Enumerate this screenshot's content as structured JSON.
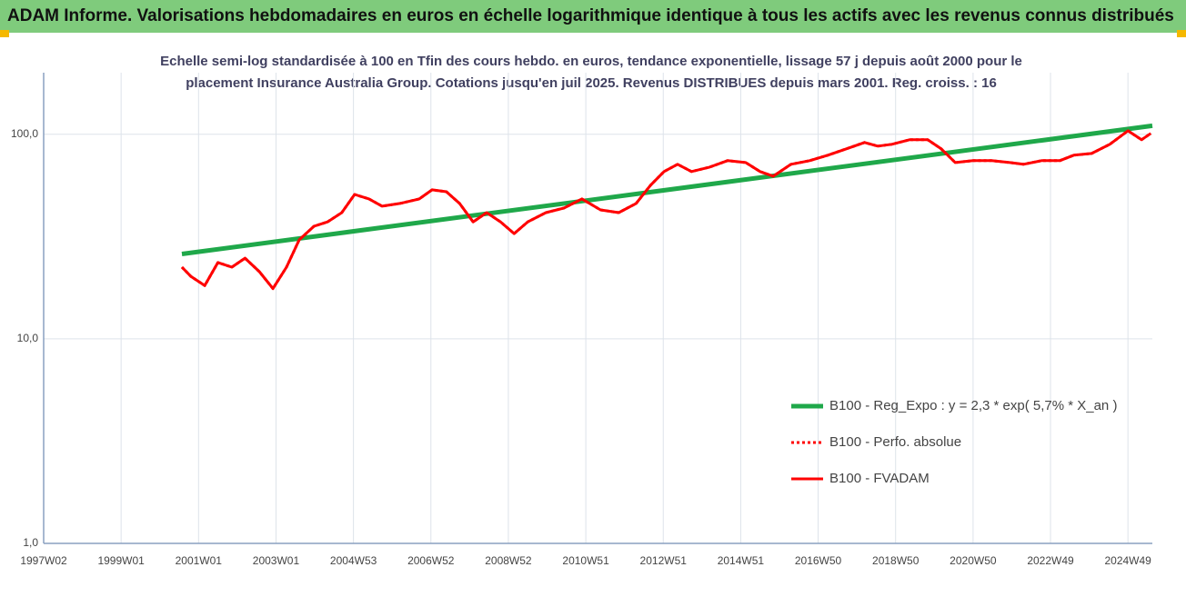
{
  "chart_data": {
    "type": "line",
    "title": "ADAM Informe. Valorisations hebdomadaires en euros en échelle logarithmique identique à tous les actifs avec les revenus connus distribués",
    "subtitle": [
      "Echelle semi-log standardisée à 100 en Tfin des cours hebdo. en euros, tendance exponentielle, lissage 57 j depuis août 2000 pour le",
      "placement Insurance Australia Group. Cotations jusqu'en juil 2025. Revenus DISTRIBUES depuis mars 2001. Reg. croiss. : 16"
    ],
    "log_scale": true,
    "grid": true,
    "legend_position": "lower right",
    "xlim": [
      1997.0,
      2025.63
    ],
    "xticks": [
      {
        "value": 1997.0,
        "label": "1997W02"
      },
      {
        "value": 1999.0,
        "label": "1999W01"
      },
      {
        "value": 2001.0,
        "label": "2001W01"
      },
      {
        "value": 2003.0,
        "label": "2003W01"
      },
      {
        "value": 2005.0,
        "label": "2004W53"
      },
      {
        "value": 2007.0,
        "label": "2006W52"
      },
      {
        "value": 2009.0,
        "label": "2008W52"
      },
      {
        "value": 2011.0,
        "label": "2010W51"
      },
      {
        "value": 2013.0,
        "label": "2012W51"
      },
      {
        "value": 2015.0,
        "label": "2014W51"
      },
      {
        "value": 2017.0,
        "label": "2016W50"
      },
      {
        "value": 2019.0,
        "label": "2018W50"
      },
      {
        "value": 2021.0,
        "label": "2020W50"
      },
      {
        "value": 2023.0,
        "label": "2022W49"
      },
      {
        "value": 2025.0,
        "label": "2024W49"
      }
    ],
    "ylim": [
      1,
      200
    ],
    "yticks": [
      {
        "value": 1,
        "label": "1,0"
      },
      {
        "value": 10,
        "label": "10,0"
      },
      {
        "value": 100,
        "label": "100,0"
      }
    ],
    "series": [
      {
        "name": "B100 - Reg_Expo : y = 2,3 * exp( 5,7% *  X_an )",
        "color": "#1fa84a",
        "style": "solid",
        "width": 5,
        "x": [
          2000.57,
          2025.63
        ],
        "values": [
          26,
          110
        ]
      },
      {
        "name": "B100 - Perfo. absolue",
        "color": "#ff0000",
        "style": "dotted",
        "width": 3,
        "x": [
          2000.57,
          2000.8,
          2001.16,
          2001.5,
          2001.86,
          2002.2,
          2002.57,
          2002.92,
          2003.27,
          2003.6,
          2003.98,
          2004.33,
          2004.7,
          2005.03,
          2005.4,
          2005.74,
          2006.2,
          2006.7,
          2007.03,
          2007.4,
          2007.74,
          2008.09,
          2008.44,
          2008.8,
          2009.15,
          2009.5,
          2009.97,
          2010.44,
          2010.9,
          2011.38,
          2011.85,
          2012.3,
          2012.67,
          2013.02,
          2013.37,
          2013.73,
          2014.2,
          2014.66,
          2015.13,
          2015.5,
          2015.84,
          2016.3,
          2016.78,
          2017.25,
          2017.72,
          2018.2,
          2018.54,
          2018.9,
          2019.36,
          2019.83,
          2020.18,
          2020.54,
          2021.0,
          2021.48,
          2021.95,
          2022.3,
          2022.77,
          2023.24,
          2023.6,
          2024.06,
          2024.53,
          2025.0,
          2025.35,
          2025.59
        ],
        "values": [
          22.4,
          20.2,
          18.2,
          23.6,
          22.4,
          24.8,
          21.3,
          17.6,
          22.4,
          30.5,
          35.5,
          37.3,
          41.4,
          50.8,
          48.3,
          44.5,
          45.9,
          48.3,
          53.5,
          52.4,
          45.9,
          37.3,
          41.4,
          37.3,
          32.7,
          37.3,
          41.4,
          43.6,
          48.3,
          42.7,
          41.4,
          45.9,
          56.3,
          65.7,
          71.3,
          65.7,
          69.1,
          74.3,
          72.7,
          65.7,
          62.4,
          71.3,
          74.3,
          79.0,
          84.8,
          91.2,
          87.5,
          89.3,
          94.0,
          94.0,
          84.8,
          72.7,
          74.3,
          74.3,
          72.7,
          71.3,
          74.3,
          74.3,
          79.0,
          80.6,
          89.3,
          104,
          94,
          101
        ]
      },
      {
        "name": "B100 - FVADAM",
        "color": "#ff0000",
        "style": "solid",
        "width": 3,
        "x": [
          2000.57,
          2000.8,
          2001.16,
          2001.5,
          2001.86,
          2002.2,
          2002.57,
          2002.92,
          2003.27,
          2003.6,
          2003.98,
          2004.33,
          2004.7,
          2005.03,
          2005.4,
          2005.74,
          2006.2,
          2006.7,
          2007.03,
          2007.4,
          2007.74,
          2008.09,
          2008.44,
          2008.8,
          2009.15,
          2009.5,
          2009.97,
          2010.44,
          2010.9,
          2011.38,
          2011.85,
          2012.3,
          2012.67,
          2013.02,
          2013.37,
          2013.73,
          2014.2,
          2014.66,
          2015.13,
          2015.5,
          2015.84,
          2016.3,
          2016.78,
          2017.25,
          2017.72,
          2018.2,
          2018.54,
          2018.9,
          2019.36,
          2019.83,
          2020.18,
          2020.54,
          2021.0,
          2021.48,
          2021.95,
          2022.3,
          2022.77,
          2023.24,
          2023.6,
          2024.06,
          2024.53,
          2025.0,
          2025.35,
          2025.59
        ],
        "values": [
          22.4,
          20.2,
          18.2,
          23.6,
          22.4,
          24.8,
          21.3,
          17.6,
          22.4,
          30.5,
          35.5,
          37.3,
          41.4,
          50.8,
          48.3,
          44.5,
          45.9,
          48.3,
          53.5,
          52.4,
          45.9,
          37.3,
          41.4,
          37.3,
          32.7,
          37.3,
          41.4,
          43.6,
          48.3,
          42.7,
          41.4,
          45.9,
          56.3,
          65.7,
          71.3,
          65.7,
          69.1,
          74.3,
          72.7,
          65.7,
          62.4,
          71.3,
          74.3,
          79.0,
          84.8,
          91.2,
          87.5,
          89.3,
          94.0,
          94.0,
          84.8,
          72.7,
          74.3,
          74.3,
          72.7,
          71.3,
          74.3,
          74.3,
          79.0,
          80.6,
          89.3,
          104,
          94,
          101
        ]
      }
    ]
  }
}
